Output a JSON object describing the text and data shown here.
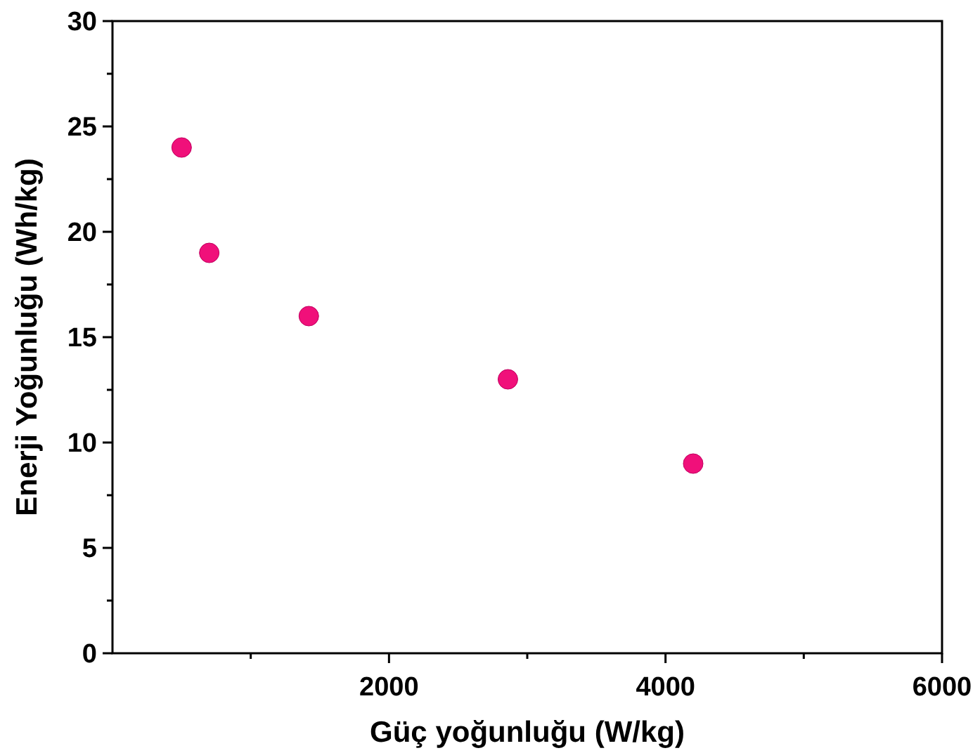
{
  "chart_data": {
    "type": "scatter",
    "xlabel": "Güç yoğunluğu (W/kg)",
    "ylabel": "Enerji Yoğunluğu (Wh/kg)",
    "x": [
      500,
      700,
      1420,
      2860,
      4200
    ],
    "series": [
      {
        "color": "#f0107a",
        "values": [
          24,
          19,
          16,
          13,
          9
        ]
      }
    ],
    "xlim": [
      0,
      6000
    ],
    "xticks": [
      {
        "value": 1000,
        "label": null
      },
      2000,
      {
        "value": 3000,
        "label": null
      },
      4000,
      {
        "value": 5000,
        "label": null
      },
      6000
    ],
    "ylim": [
      0,
      30
    ],
    "yticks": [
      0,
      {
        "value": 2.5,
        "label": null
      },
      5,
      {
        "value": 7.5,
        "label": null
      },
      10,
      {
        "value": 12.5,
        "label": null
      },
      15,
      {
        "value": 17.5,
        "label": null
      },
      20,
      {
        "value": 22.5,
        "label": null
      },
      25,
      {
        "value": 27.5,
        "label": null
      },
      30
    ],
    "marker": "circle"
  }
}
